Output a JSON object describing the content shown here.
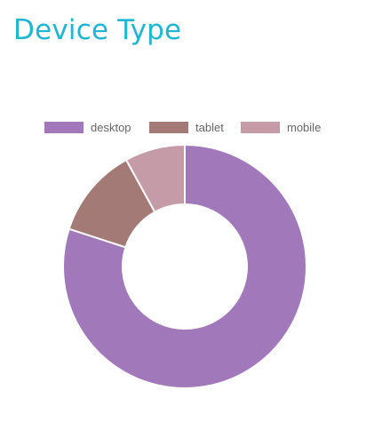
{
  "page": {
    "title": "Device Type"
  },
  "chart_data": {
    "type": "pie",
    "donut": true,
    "title": "Device Type",
    "legend_position": "top",
    "categories": [
      "desktop",
      "tablet",
      "mobile"
    ],
    "values": [
      80,
      12,
      8
    ],
    "colors": [
      "#a178b9",
      "#a37a75",
      "#c69ba8"
    ]
  }
}
